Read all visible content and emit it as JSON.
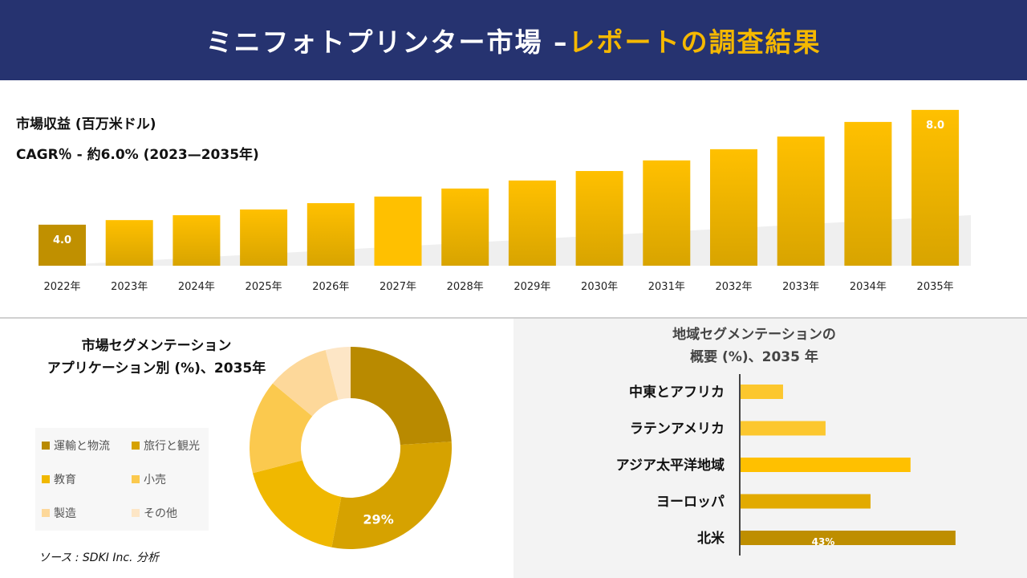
{
  "header": {
    "title_main": "ミニフォトプリンター市場 –",
    "title_accent": "レポートの調査結果"
  },
  "revenue": {
    "label": "市場収益 (百万米ドル)",
    "cagr": "CAGR％ - 約6.0% (2023—2035年)"
  },
  "chart_data": [
    {
      "type": "bar",
      "categories": [
        "2022年",
        "2023年",
        "2024年",
        "2025年",
        "2026年",
        "2027年",
        "2028年",
        "2029年",
        "2030年",
        "2031年",
        "2032年",
        "2033年",
        "2034年",
        "2035年"
      ],
      "values": [
        4.0,
        4.16,
        4.33,
        4.53,
        4.75,
        4.98,
        5.26,
        5.54,
        5.87,
        6.24,
        6.63,
        7.07,
        7.58,
        8.0
      ],
      "data_labels": {
        "0": "4.0",
        "13": "8.0"
      },
      "color": "#f0b800"
    },
    {
      "type": "pie",
      "title": "市場セグメンテーション\nアプリケーション別 (%)、2035年",
      "title_lines": [
        "市場セグメンテーション",
        "アプリケーション別 (%)、2035年"
      ],
      "categories": [
        "運輸と物流",
        "旅行と観光",
        "教育",
        "小売",
        "製造",
        "その他"
      ],
      "values": [
        24,
        29,
        18,
        15,
        10,
        4
      ],
      "colors": [
        "#b98a00",
        "#d6a200",
        "#f0b800",
        "#fbc94e",
        "#fdd89a",
        "#fde6c6"
      ],
      "data_labels": {
        "1": "29%"
      },
      "donut": true,
      "legend": "left"
    },
    {
      "type": "bar",
      "orientation": "horizontal",
      "title_lines": [
        "地域セグメンテーションの",
        "概要 (%)、2035 年"
      ],
      "categories": [
        "中東とアフリカ",
        "ラテンアメリカ",
        "アジア太平洋地域",
        "ヨーロッパ",
        "北米"
      ],
      "values": [
        8.5,
        17,
        34,
        26,
        43
      ],
      "colors": [
        "#fcc72e",
        "#fcc72e",
        "#ffc000",
        "#e2aa00",
        "#be8e00"
      ],
      "data_labels": {
        "4": "43%"
      }
    }
  ],
  "source": "ソース : SDKI Inc. 分析"
}
